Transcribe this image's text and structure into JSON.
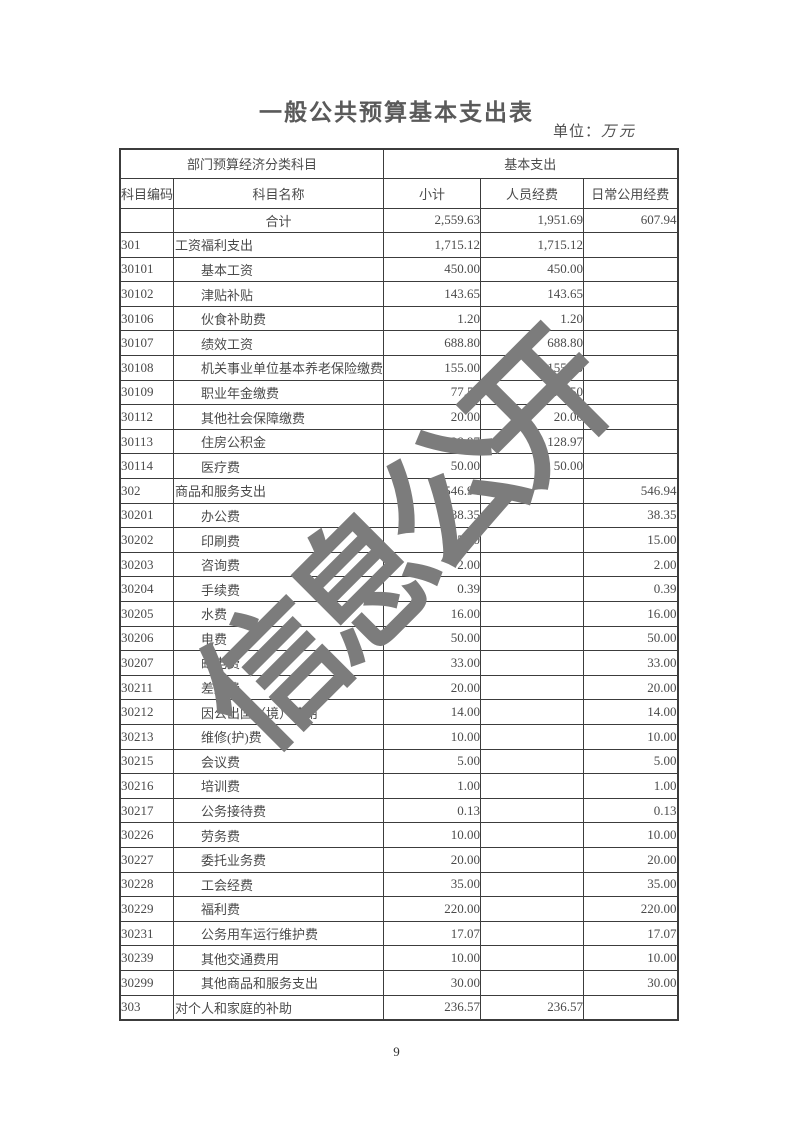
{
  "page": {
    "title": "一般公共预算基本支出表",
    "unit_prefix": "单位：",
    "unit_value": "万元",
    "watermark": "信息公开",
    "page_number": "9"
  },
  "table": {
    "header_groups": {
      "left": "部门预算经济分类科目",
      "right": "基本支出"
    },
    "columns": [
      "科目编码",
      "科目名称",
      "小计",
      "人员经费",
      "日常公用经费"
    ],
    "rows": [
      {
        "code": "",
        "name": "合计",
        "subtotal": "2,559.63",
        "personnel": "1,951.69",
        "daily": "607.94",
        "level": "total"
      },
      {
        "code": "301",
        "name": "工资福利支出",
        "subtotal": "1,715.12",
        "personnel": "1,715.12",
        "daily": "",
        "level": "category"
      },
      {
        "code": "30101",
        "name": "基本工资",
        "subtotal": "450.00",
        "personnel": "450.00",
        "daily": "",
        "level": "item"
      },
      {
        "code": "30102",
        "name": "津贴补贴",
        "subtotal": "143.65",
        "personnel": "143.65",
        "daily": "",
        "level": "item"
      },
      {
        "code": "30106",
        "name": "伙食补助费",
        "subtotal": "1.20",
        "personnel": "1.20",
        "daily": "",
        "level": "item"
      },
      {
        "code": "30107",
        "name": "绩效工资",
        "subtotal": "688.80",
        "personnel": "688.80",
        "daily": "",
        "level": "item"
      },
      {
        "code": "30108",
        "name": "机关事业单位基本养老保险缴费",
        "subtotal": "155.00",
        "personnel": "155.00",
        "daily": "",
        "level": "item"
      },
      {
        "code": "30109",
        "name": "职业年金缴费",
        "subtotal": "77.50",
        "personnel": "77.50",
        "daily": "",
        "level": "item"
      },
      {
        "code": "30112",
        "name": "其他社会保障缴费",
        "subtotal": "20.00",
        "personnel": "20.00",
        "daily": "",
        "level": "item"
      },
      {
        "code": "30113",
        "name": "住房公积金",
        "subtotal": "128.97",
        "personnel": "128.97",
        "daily": "",
        "level": "item"
      },
      {
        "code": "30114",
        "name": "医疗费",
        "subtotal": "50.00",
        "personnel": "50.00",
        "daily": "",
        "level": "item"
      },
      {
        "code": "302",
        "name": "商品和服务支出",
        "subtotal": "546.94",
        "personnel": "",
        "daily": "546.94",
        "level": "category"
      },
      {
        "code": "30201",
        "name": "办公费",
        "subtotal": "38.35",
        "personnel": "",
        "daily": "38.35",
        "level": "item"
      },
      {
        "code": "30202",
        "name": "印刷费",
        "subtotal": "15.00",
        "personnel": "",
        "daily": "15.00",
        "level": "item"
      },
      {
        "code": "30203",
        "name": "咨询费",
        "subtotal": "2.00",
        "personnel": "",
        "daily": "2.00",
        "level": "item"
      },
      {
        "code": "30204",
        "name": "手续费",
        "subtotal": "0.39",
        "personnel": "",
        "daily": "0.39",
        "level": "item"
      },
      {
        "code": "30205",
        "name": "水费",
        "subtotal": "16.00",
        "personnel": "",
        "daily": "16.00",
        "level": "item"
      },
      {
        "code": "30206",
        "name": "电费",
        "subtotal": "50.00",
        "personnel": "",
        "daily": "50.00",
        "level": "item"
      },
      {
        "code": "30207",
        "name": "邮电费",
        "subtotal": "33.00",
        "personnel": "",
        "daily": "33.00",
        "level": "item"
      },
      {
        "code": "30211",
        "name": "差旅费",
        "subtotal": "20.00",
        "personnel": "",
        "daily": "20.00",
        "level": "item"
      },
      {
        "code": "30212",
        "name": "因公出国（境）费用",
        "subtotal": "14.00",
        "personnel": "",
        "daily": "14.00",
        "level": "item"
      },
      {
        "code": "30213",
        "name": "维修(护)费",
        "subtotal": "10.00",
        "personnel": "",
        "daily": "10.00",
        "level": "item"
      },
      {
        "code": "30215",
        "name": "会议费",
        "subtotal": "5.00",
        "personnel": "",
        "daily": "5.00",
        "level": "item"
      },
      {
        "code": "30216",
        "name": "培训费",
        "subtotal": "1.00",
        "personnel": "",
        "daily": "1.00",
        "level": "item"
      },
      {
        "code": "30217",
        "name": "公务接待费",
        "subtotal": "0.13",
        "personnel": "",
        "daily": "0.13",
        "level": "item"
      },
      {
        "code": "30226",
        "name": "劳务费",
        "subtotal": "10.00",
        "personnel": "",
        "daily": "10.00",
        "level": "item"
      },
      {
        "code": "30227",
        "name": "委托业务费",
        "subtotal": "20.00",
        "personnel": "",
        "daily": "20.00",
        "level": "item"
      },
      {
        "code": "30228",
        "name": "工会经费",
        "subtotal": "35.00",
        "personnel": "",
        "daily": "35.00",
        "level": "item"
      },
      {
        "code": "30229",
        "name": "福利费",
        "subtotal": "220.00",
        "personnel": "",
        "daily": "220.00",
        "level": "item"
      },
      {
        "code": "30231",
        "name": "公务用车运行维护费",
        "subtotal": "17.07",
        "personnel": "",
        "daily": "17.07",
        "level": "item"
      },
      {
        "code": "30239",
        "name": "其他交通费用",
        "subtotal": "10.00",
        "personnel": "",
        "daily": "10.00",
        "level": "item"
      },
      {
        "code": "30299",
        "name": "其他商品和服务支出",
        "subtotal": "30.00",
        "personnel": "",
        "daily": "30.00",
        "level": "item"
      },
      {
        "code": "303",
        "name": "对个人和家庭的补助",
        "subtotal": "236.57",
        "personnel": "236.57",
        "daily": "",
        "level": "category"
      }
    ]
  }
}
